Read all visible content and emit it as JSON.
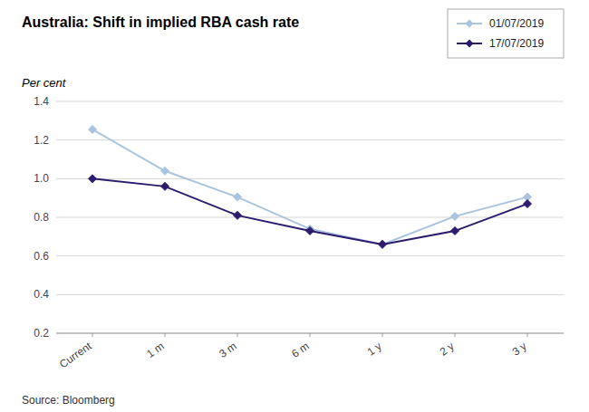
{
  "chart_data": {
    "type": "line",
    "title": "Australia: Shift in implied RBA cash rate",
    "ylabel": "Per cent",
    "source": "Source: Bloomberg",
    "categories": [
      "Current",
      "1 m",
      "3 m",
      "6 m",
      "1 y",
      "2 y",
      "3 y"
    ],
    "series": [
      {
        "name": "01/07/2019",
        "color": "#aac4de",
        "values": [
          1.255,
          1.04,
          0.905,
          0.74,
          0.66,
          0.805,
          0.905
        ]
      },
      {
        "name": "17/07/2019",
        "color": "#2d1b6e",
        "values": [
          1.0,
          0.96,
          0.81,
          0.73,
          0.66,
          0.73,
          0.87
        ]
      }
    ],
    "ylim": [
      0.2,
      1.4
    ],
    "yticks": [
      0.2,
      0.4,
      0.6,
      0.8,
      {
        "value": 1.0,
        "label": "1.0"
      },
      1.2,
      1.4
    ],
    "grid": true,
    "legend": "upper right",
    "marker": "diamond",
    "line_style": "solid"
  }
}
